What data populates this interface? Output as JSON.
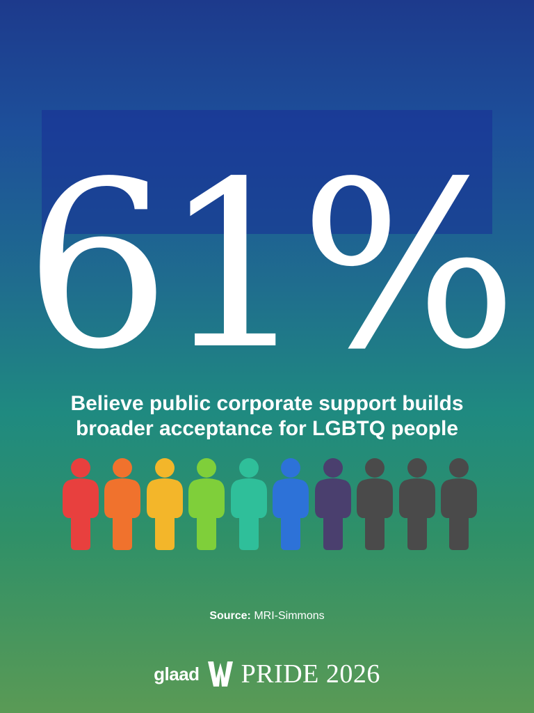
{
  "stat": {
    "value": "61%"
  },
  "subtitle": {
    "line1": "Believe public corporate support builds",
    "line2": "broader acceptance for LGBTQ people"
  },
  "people_icons": {
    "highlighted_count": 6,
    "total": 10,
    "colors": [
      "#e8403e",
      "#f0722d",
      "#f3b62a",
      "#7fcf3a",
      "#2fbf9a",
      "#2d72d8",
      "#4a3f6e",
      "#4a4a4a",
      "#4a4a4a",
      "#4a4a4a"
    ]
  },
  "source": {
    "label": "Source:",
    "value": "MRI-Simmons"
  },
  "footer": {
    "brand": "glaad",
    "event": "PRIDE 2026"
  }
}
